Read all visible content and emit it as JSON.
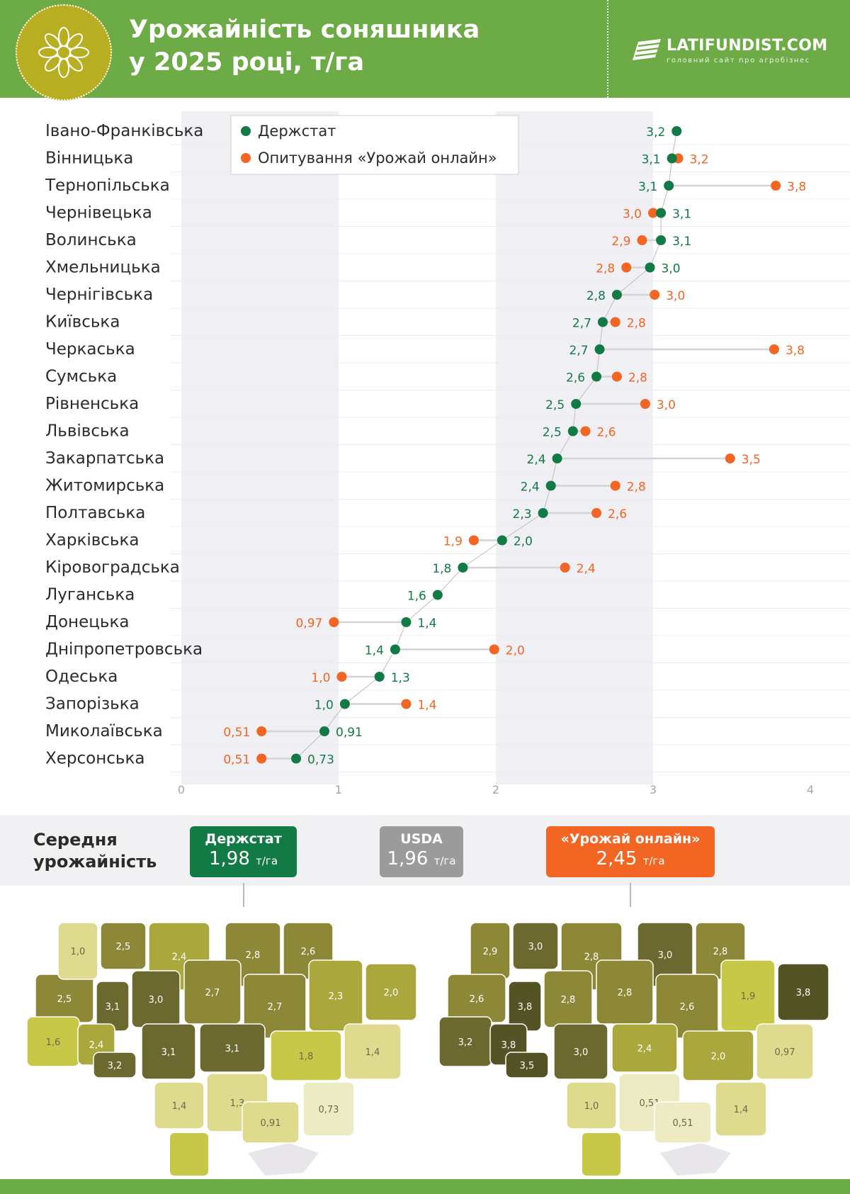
{
  "header": {
    "title_line1": "Урожайність соняшника",
    "title_line2": "у 2025 році, т/га",
    "logo_name": "LATIFUNDIST.COM",
    "logo_tagline": "головний сайт про агробізнес"
  },
  "colors": {
    "header_green": "#6cab45",
    "derzhstat": "#127a45",
    "survey": "#f26522",
    "usda": "#9b9b9b"
  },
  "chart_data": {
    "type": "dumbbell",
    "title": "Урожайність соняшника у 2025 році, т/га",
    "series": [
      {
        "name": "Держстат",
        "color": "#127a45"
      },
      {
        "name": "Опитування «Урожай онлайн»",
        "color": "#f26522"
      }
    ],
    "xlim": [
      0,
      4
    ],
    "xticks": [
      "0",
      "1",
      "2",
      "3",
      "4"
    ],
    "legend": "top-center",
    "rows": [
      {
        "region": "Івано-Франківська",
        "derzhstat": 3.15,
        "derzhstat_label": "3,2",
        "survey": null,
        "survey_label": ""
      },
      {
        "region": "Вінницька",
        "derzhstat": 3.12,
        "derzhstat_label": "3,1",
        "survey": 3.16,
        "survey_label": "3,2"
      },
      {
        "region": "Тернопільська",
        "derzhstat": 3.1,
        "derzhstat_label": "3,1",
        "survey": 3.78,
        "survey_label": "3,8"
      },
      {
        "region": "Чернівецька",
        "derzhstat": 3.05,
        "derzhstat_label": "3,1",
        "survey": 3.0,
        "survey_label": "3,0"
      },
      {
        "region": "Волинська",
        "derzhstat": 3.05,
        "derzhstat_label": "3,1",
        "survey": 2.93,
        "survey_label": "2,9"
      },
      {
        "region": "Хмельницька",
        "derzhstat": 2.98,
        "derzhstat_label": "3,0",
        "survey": 2.83,
        "survey_label": "2,8"
      },
      {
        "region": "Чернігівська",
        "derzhstat": 2.77,
        "derzhstat_label": "2,8",
        "survey": 3.01,
        "survey_label": "3,0"
      },
      {
        "region": "Київська",
        "derzhstat": 2.68,
        "derzhstat_label": "2,7",
        "survey": 2.76,
        "survey_label": "2,8"
      },
      {
        "region": "Черкаська",
        "derzhstat": 2.66,
        "derzhstat_label": "2,7",
        "survey": 3.77,
        "survey_label": "3,8"
      },
      {
        "region": "Сумська",
        "derzhstat": 2.64,
        "derzhstat_label": "2,6",
        "survey": 2.77,
        "survey_label": "2,8"
      },
      {
        "region": "Рівненська",
        "derzhstat": 2.51,
        "derzhstat_label": "2,5",
        "survey": 2.95,
        "survey_label": "3,0"
      },
      {
        "region": "Львівська",
        "derzhstat": 2.49,
        "derzhstat_label": "2,5",
        "survey": 2.57,
        "survey_label": "2,6"
      },
      {
        "region": "Закарпатська",
        "derzhstat": 2.39,
        "derzhstat_label": "2,4",
        "survey": 3.49,
        "survey_label": "3,5"
      },
      {
        "region": "Житомирська",
        "derzhstat": 2.35,
        "derzhstat_label": "2,4",
        "survey": 2.76,
        "survey_label": "2,8"
      },
      {
        "region": "Полтавська",
        "derzhstat": 2.3,
        "derzhstat_label": "2,3",
        "survey": 2.64,
        "survey_label": "2,6"
      },
      {
        "region": "Харківська",
        "derzhstat": 2.04,
        "derzhstat_label": "2,0",
        "survey": 1.86,
        "survey_label": "1,9"
      },
      {
        "region": "Кіровоградська",
        "derzhstat": 1.79,
        "derzhstat_label": "1,8",
        "survey": 2.44,
        "survey_label": "2,4"
      },
      {
        "region": "Луганська",
        "derzhstat": 1.63,
        "derzhstat_label": "1,6",
        "survey": null,
        "survey_label": ""
      },
      {
        "region": "Донецька",
        "derzhstat": 1.43,
        "derzhstat_label": "1,4",
        "survey": 0.97,
        "survey_label": "0,97"
      },
      {
        "region": "Дніпропетровська",
        "derzhstat": 1.36,
        "derzhstat_label": "1,4",
        "survey": 1.99,
        "survey_label": "2,0"
      },
      {
        "region": "Одеська",
        "derzhstat": 1.26,
        "derzhstat_label": "1,3",
        "survey": 1.02,
        "survey_label": "1,0"
      },
      {
        "region": "Запорізька",
        "derzhstat": 1.04,
        "derzhstat_label": "1,0",
        "survey": 1.43,
        "survey_label": "1,4"
      },
      {
        "region": "Миколаївська",
        "derzhstat": 0.91,
        "derzhstat_label": "0,91",
        "survey": 0.51,
        "survey_label": "0,51"
      },
      {
        "region": "Херсонська",
        "derzhstat": 0.73,
        "derzhstat_label": "0,73",
        "survey": 0.51,
        "survey_label": "0,51"
      }
    ]
  },
  "averages": {
    "title_line1": "Середня",
    "title_line2": "урожайність",
    "unit": "т/га",
    "items": [
      {
        "label": "Держстат",
        "value": "1,98",
        "color": "#127a45"
      },
      {
        "label": "USDA",
        "value": "1,96",
        "color": "#9b9b9b"
      },
      {
        "label": "«Урожай онлайн»",
        "value": "2,45",
        "color": "#f26522"
      }
    ]
  },
  "maps": {
    "derzhstat_map_labels": [
      "3,1",
      "2,5",
      "2,4",
      "2,8",
      "2,6",
      "2,5",
      "3,1",
      "3,0",
      "2,7",
      "2,7",
      "2,3",
      "2,0",
      "1,6",
      "2,4",
      "3,2",
      "3,1",
      "3,1",
      "1,8",
      "1,4",
      "1,4",
      "1,3",
      "0,91",
      "0,73",
      "1,0"
    ],
    "survey_map_labels": [
      "2,9",
      "3,0",
      "2,8",
      "3,0",
      "2,8",
      "2,6",
      "3,8",
      "2,8",
      "2,8",
      "2,6",
      "1,9",
      "3,8",
      "3,2",
      "3,8",
      "3,5",
      "3,0",
      "2,4",
      "2,0",
      "0,97",
      "1,0",
      "0,51",
      "0,51",
      "1,4"
    ]
  }
}
